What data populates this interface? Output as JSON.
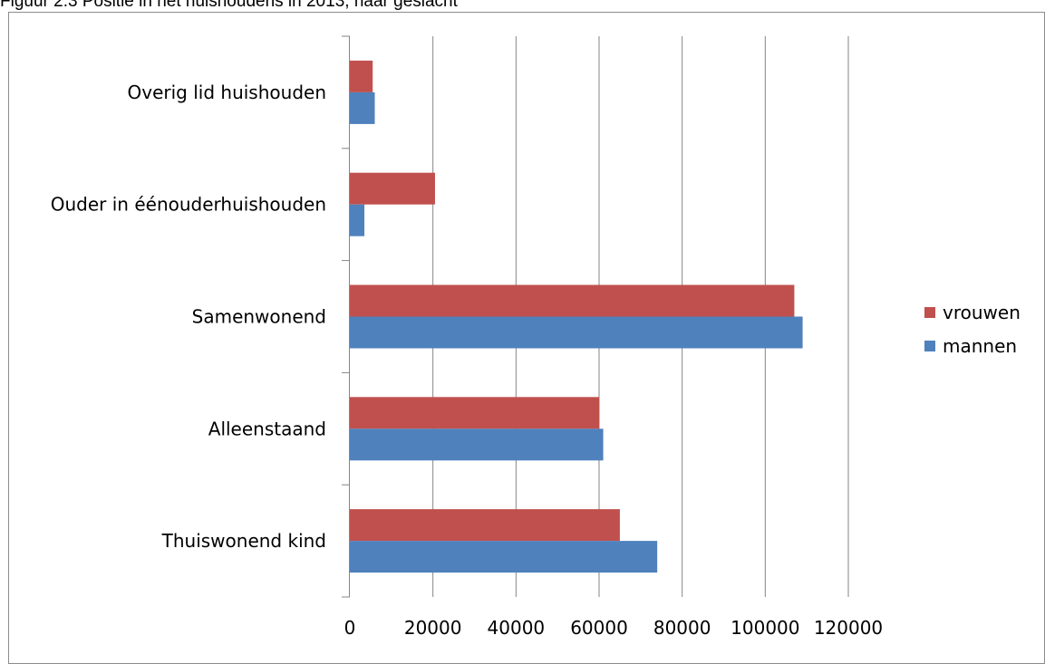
{
  "caption": "Figuur 2.3 Positie in het huishoudens in 2013, naar geslacht",
  "chart_data": {
    "type": "bar",
    "orientation": "horizontal",
    "categories": [
      "Thuiswonend kind",
      "Alleenstaand",
      "Samenwonend",
      "Ouder in éénouderhuishouden",
      "Overig lid huishouden"
    ],
    "series": [
      {
        "name": "vrouwen",
        "color": "#c0504d",
        "values": [
          65000,
          60000,
          107000,
          20500,
          5500
        ]
      },
      {
        "name": "mannen",
        "color": "#4f81bd",
        "values": [
          74000,
          61000,
          109000,
          3500,
          6000
        ]
      }
    ],
    "xlim": [
      0,
      120000
    ],
    "x_ticks": [
      0,
      20000,
      40000,
      60000,
      80000,
      100000,
      120000
    ],
    "grid": true,
    "legend_position": "right"
  }
}
